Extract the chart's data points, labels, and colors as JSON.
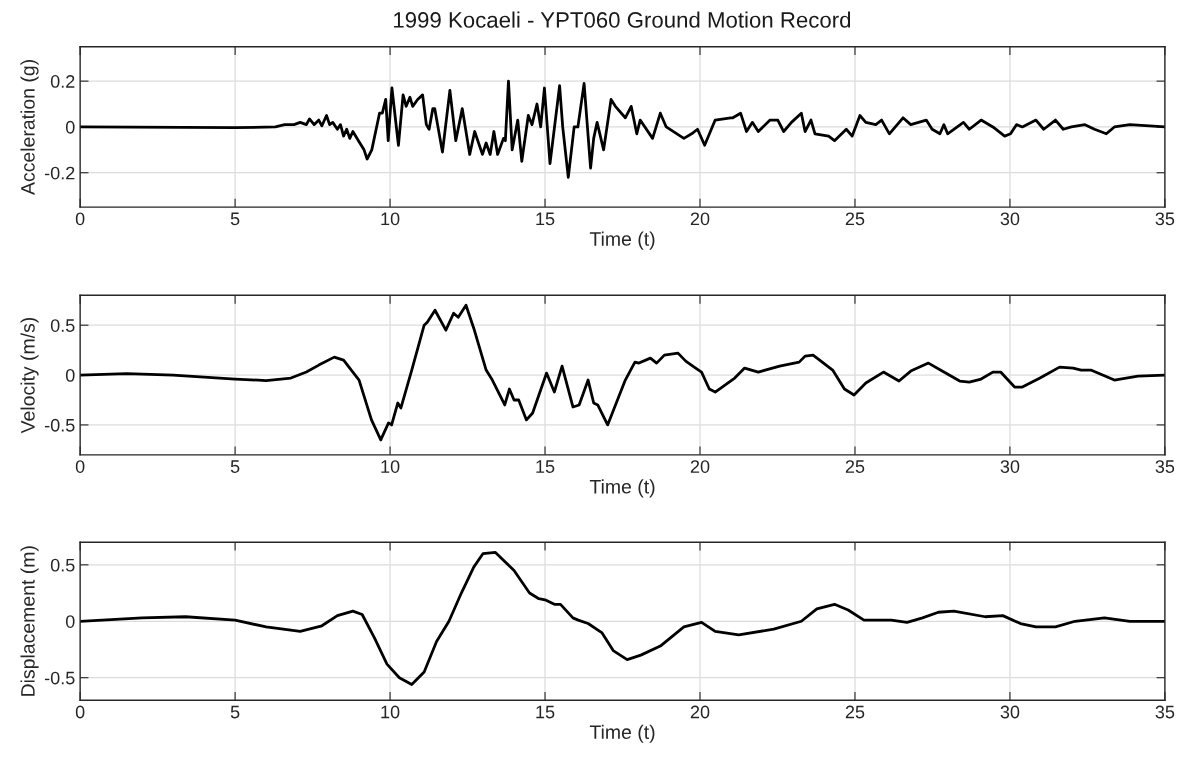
{
  "chart_data": [
    {
      "type": "line",
      "title": "1999 Kocaeli - YPT060 Ground Motion Record",
      "xlabel": "Time (t)",
      "ylabel": "Acceleration (g)",
      "xlim": [
        0,
        35
      ],
      "ylim": [
        -0.35,
        0.35
      ],
      "xticks": [
        0,
        5,
        10,
        15,
        20,
        25,
        30,
        35
      ],
      "yticks": [
        -0.2,
        0,
        0.2
      ],
      "grid": true,
      "series": [
        {
          "color": "#000000",
          "x": [
            0,
            5,
            6.3,
            6.6,
            6.9,
            7.1,
            7.3,
            7.4,
            7.55,
            7.7,
            7.8,
            7.95,
            8.05,
            8.15,
            8.3,
            8.4,
            8.5,
            8.6,
            8.7,
            8.8,
            8.98,
            9.16,
            9.26,
            9.41,
            9.66,
            9.75,
            9.86,
            9.94,
            10.06,
            10.27,
            10.42,
            10.52,
            10.64,
            10.73,
            10.89,
            11.05,
            11.17,
            11.26,
            11.38,
            11.44,
            11.69,
            11.93,
            12.12,
            12.33,
            12.57,
            12.73,
            12.98,
            13.1,
            13.23,
            13.35,
            13.47,
            13.66,
            13.72,
            13.82,
            13.94,
            14.12,
            14.25,
            14.46,
            14.58,
            14.74,
            14.86,
            14.98,
            15.16,
            15.47,
            15.57,
            15.75,
            15.94,
            16.06,
            16.26,
            16.47,
            16.57,
            16.68,
            16.89,
            17.13,
            17.27,
            17.59,
            17.78,
            17.96,
            18.07,
            18.47,
            18.72,
            18.91,
            19.48,
            19.73,
            19.92,
            20.15,
            20.49,
            20.99,
            21.06,
            21.31,
            21.5,
            21.69,
            21.88,
            22.26,
            22.51,
            22.7,
            22.95,
            23.27,
            23.39,
            23.58,
            23.71,
            24.15,
            24.34,
            24.72,
            24.91,
            25.16,
            25.35,
            25.67,
            25.86,
            26.11,
            26.55,
            26.8,
            27.3,
            27.49,
            27.74,
            27.87,
            27.99,
            28.5,
            28.69,
            29.07,
            29.45,
            29.83,
            30.02,
            30.21,
            30.4,
            30.84,
            31.09,
            31.47,
            31.72,
            31.98,
            32.42,
            32.73,
            33.11,
            33.37,
            33.87,
            35
          ],
          "values": [
            0,
            -0.003,
            0,
            0.01,
            0.01,
            0.02,
            0.01,
            0.035,
            0.01,
            0.03,
            0.005,
            0.05,
            0.01,
            0.02,
            -0.01,
            0.01,
            -0.04,
            -0.01,
            -0.05,
            -0.02,
            -0.06,
            -0.1,
            -0.14,
            -0.1,
            0.06,
            0.06,
            0.12,
            -0.06,
            0.17,
            -0.08,
            0.14,
            0.09,
            0.13,
            0.09,
            0.12,
            0.14,
            0.01,
            -0.01,
            0.08,
            0.08,
            -0.11,
            0.16,
            -0.06,
            0.08,
            -0.12,
            -0.02,
            -0.12,
            -0.07,
            -0.12,
            -0.02,
            -0.12,
            -0.05,
            -0.06,
            0.2,
            -0.1,
            0.03,
            -0.15,
            0.05,
            0.01,
            0.1,
            0,
            0.17,
            -0.16,
            0.18,
            0,
            -0.22,
            0,
            0,
            0.19,
            -0.18,
            -0.05,
            0.02,
            -0.1,
            0.12,
            0.09,
            0.04,
            0.09,
            -0.03,
            0.03,
            -0.05,
            0.06,
            0,
            -0.05,
            -0.03,
            -0.01,
            -0.08,
            0.03,
            0.04,
            0.04,
            0.06,
            -0.02,
            0.02,
            -0.02,
            0.03,
            0.03,
            -0.02,
            0.02,
            0.06,
            -0.02,
            0.03,
            -0.03,
            -0.04,
            -0.06,
            -0.01,
            -0.04,
            0.05,
            0.02,
            0.01,
            0.03,
            -0.03,
            0.04,
            0.01,
            0.03,
            -0.01,
            -0.03,
            0.01,
            -0.03,
            0.02,
            -0.01,
            0.03,
            0,
            -0.04,
            -0.03,
            0.01,
            0,
            0.03,
            -0.01,
            0.03,
            -0.01,
            0,
            0.01,
            -0.01,
            -0.03,
            0,
            0.01,
            0
          ]
        }
      ]
    },
    {
      "type": "line",
      "xlabel": "Time (t)",
      "ylabel": "Velocity (m/s)",
      "xlim": [
        0,
        35
      ],
      "ylim": [
        -0.8,
        0.8
      ],
      "xticks": [
        0,
        5,
        10,
        15,
        20,
        25,
        30,
        35
      ],
      "yticks": [
        -0.5,
        0,
        0.5
      ],
      "grid": true,
      "series": [
        {
          "color": "#000000",
          "x": [
            0,
            1.5,
            3,
            5,
            6,
            6.8,
            7.3,
            7.7,
            8.2,
            8.5,
            9.0,
            9.4,
            9.7,
            9.95,
            10.05,
            10.25,
            10.35,
            10.7,
            11.1,
            11.2,
            11.45,
            11.8,
            12.05,
            12.2,
            12.45,
            12.7,
            13.1,
            13.3,
            13.7,
            13.85,
            14.0,
            14.15,
            14.4,
            14.6,
            15.05,
            15.3,
            15.55,
            15.9,
            16.1,
            16.39,
            16.57,
            16.7,
            17.02,
            17.59,
            17.9,
            18.03,
            18.4,
            18.6,
            18.85,
            19.29,
            19.54,
            19.86,
            20.05,
            20.3,
            20.49,
            21.12,
            21.44,
            21.88,
            22.57,
            23.2,
            23.39,
            23.65,
            24.28,
            24.66,
            24.97,
            25.35,
            25.92,
            26.42,
            26.8,
            27.37,
            27.87,
            28.38,
            28.69,
            29.07,
            29.45,
            29.7,
            30.15,
            30.4,
            30.97,
            31.6,
            32.04,
            32.3,
            32.61,
            33.37,
            34.13,
            35
          ],
          "values": [
            0,
            0.015,
            0,
            -0.04,
            -0.055,
            -0.03,
            0.03,
            0.1,
            0.18,
            0.15,
            -0.05,
            -0.45,
            -0.65,
            -0.48,
            -0.5,
            -0.28,
            -0.33,
            0.05,
            0.5,
            0.53,
            0.65,
            0.45,
            0.62,
            0.58,
            0.7,
            0.47,
            0.05,
            -0.05,
            -0.3,
            -0.14,
            -0.25,
            -0.25,
            -0.45,
            -0.38,
            0.02,
            -0.17,
            0.09,
            -0.32,
            -0.3,
            -0.05,
            -0.28,
            -0.3,
            -0.5,
            -0.05,
            0.13,
            0.12,
            0.17,
            0.12,
            0.2,
            0.22,
            0.14,
            0.07,
            0.03,
            -0.14,
            -0.17,
            -0.03,
            0.07,
            0.03,
            0.09,
            0.13,
            0.19,
            0.2,
            0.05,
            -0.14,
            -0.2,
            -0.08,
            0.03,
            -0.06,
            0.04,
            0.12,
            0.03,
            -0.06,
            -0.07,
            -0.04,
            0.03,
            0.03,
            -0.12,
            -0.12,
            -0.03,
            0.08,
            0.07,
            0.05,
            0.05,
            -0.05,
            -0.01,
            0
          ]
        }
      ]
    },
    {
      "type": "line",
      "xlabel": "Time (t)",
      "ylabel": "Displacement (m)",
      "xlim": [
        0,
        35
      ],
      "ylim": [
        -0.7,
        0.7
      ],
      "xticks": [
        0,
        5,
        10,
        15,
        20,
        25,
        30,
        35
      ],
      "yticks": [
        -0.5,
        0,
        0.5
      ],
      "grid": true,
      "series": [
        {
          "color": "#000000",
          "x": [
            0,
            2,
            3.4,
            5,
            6,
            7.1,
            7.8,
            8.3,
            8.8,
            9.1,
            9.5,
            9.9,
            10.3,
            10.7,
            11.1,
            11.5,
            11.9,
            12.3,
            12.7,
            13.0,
            13.4,
            13.7,
            14.0,
            14.5,
            14.8,
            15.0,
            15.3,
            15.5,
            15.9,
            16.07,
            16.39,
            16.83,
            17.2,
            17.65,
            18.09,
            18.72,
            19.48,
            20.05,
            20.49,
            21.25,
            22.38,
            23.27,
            23.77,
            24.34,
            24.78,
            25.29,
            26.17,
            26.68,
            27.18,
            27.69,
            28.19,
            29.2,
            29.77,
            30.34,
            30.84,
            31.47,
            32.1,
            33.05,
            33.87,
            35
          ],
          "values": [
            0,
            0.03,
            0.04,
            0.01,
            -0.05,
            -0.09,
            -0.04,
            0.05,
            0.09,
            0.06,
            -0.15,
            -0.38,
            -0.5,
            -0.56,
            -0.45,
            -0.18,
            0,
            0.25,
            0.48,
            0.6,
            0.61,
            0.53,
            0.45,
            0.25,
            0.2,
            0.19,
            0.15,
            0.15,
            0.03,
            0.01,
            -0.02,
            -0.1,
            -0.26,
            -0.34,
            -0.3,
            -0.22,
            -0.05,
            -0.01,
            -0.09,
            -0.12,
            -0.07,
            0,
            0.11,
            0.15,
            0.1,
            0.01,
            0.01,
            -0.01,
            0.03,
            0.08,
            0.09,
            0.04,
            0.05,
            -0.02,
            -0.05,
            -0.05,
            0,
            0.03,
            0,
            0
          ]
        }
      ]
    }
  ]
}
